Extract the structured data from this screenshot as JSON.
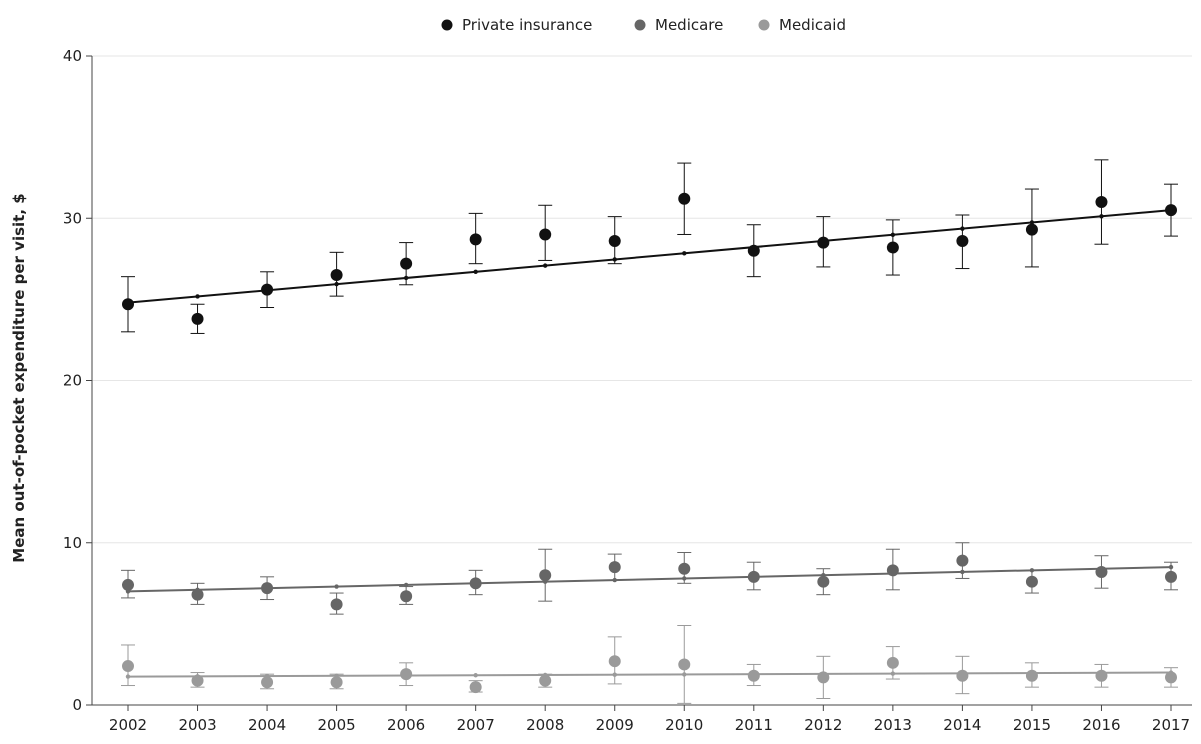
{
  "chart_data": {
    "type": "scatter",
    "title": "",
    "xlabel": "",
    "ylabel": "Mean out-of-pocket expenditure per visit, $",
    "x": [
      "2002",
      "2003",
      "2004",
      "2005",
      "2006",
      "2007",
      "2008",
      "2009",
      "2010",
      "2011",
      "2012",
      "2013",
      "2014",
      "2015",
      "2016",
      "2017"
    ],
    "ylim": [
      0,
      40
    ],
    "yticks": [
      "0",
      "10",
      "20",
      "30",
      "40"
    ],
    "grid": "horizontal",
    "legend_position": "top-center",
    "series": [
      {
        "name": "Private insurance",
        "color": "#111111",
        "values": [
          24.7,
          23.8,
          25.6,
          26.5,
          27.2,
          28.7,
          29.0,
          28.6,
          31.2,
          28.0,
          28.5,
          28.2,
          28.6,
          29.3,
          31.0,
          30.5
        ],
        "error_low": [
          23.0,
          22.9,
          24.5,
          25.2,
          25.9,
          27.2,
          27.4,
          27.2,
          29.0,
          26.4,
          27.0,
          26.5,
          26.9,
          27.0,
          28.4,
          28.9
        ],
        "error_high": [
          26.4,
          24.7,
          26.7,
          27.9,
          28.5,
          30.3,
          30.8,
          30.1,
          33.4,
          29.6,
          30.1,
          29.9,
          30.2,
          31.8,
          33.6,
          32.1
        ],
        "trend": [
          24.8,
          30.5
        ]
      },
      {
        "name": "Medicare",
        "color": "#666666",
        "values": [
          7.4,
          6.8,
          7.2,
          6.2,
          6.7,
          7.5,
          8.0,
          8.5,
          8.4,
          7.9,
          7.6,
          8.3,
          8.9,
          7.6,
          8.2,
          7.9
        ],
        "error_low": [
          6.6,
          6.2,
          6.5,
          5.6,
          6.2,
          6.8,
          6.4,
          7.7,
          7.5,
          7.1,
          6.8,
          7.1,
          7.8,
          6.9,
          7.2,
          7.1
        ],
        "error_high": [
          8.3,
          7.5,
          7.9,
          6.9,
          7.3,
          8.3,
          9.6,
          9.3,
          9.4,
          8.8,
          8.4,
          9.6,
          10.0,
          8.3,
          9.2,
          8.8
        ],
        "trend": [
          7.0,
          8.5
        ]
      },
      {
        "name": "Medicaid",
        "color": "#9a9a9a",
        "values": [
          2.4,
          1.5,
          1.4,
          1.4,
          1.9,
          1.1,
          1.5,
          2.7,
          2.5,
          1.8,
          1.7,
          2.6,
          1.8,
          1.8,
          1.8,
          1.7
        ],
        "error_low": [
          1.2,
          1.1,
          1.0,
          1.0,
          1.2,
          0.8,
          1.1,
          1.3,
          0.1,
          1.2,
          0.4,
          1.6,
          0.7,
          1.1,
          1.1,
          1.1
        ],
        "error_high": [
          3.7,
          2.0,
          1.9,
          1.9,
          2.6,
          1.5,
          1.9,
          4.2,
          4.9,
          2.5,
          3.0,
          3.6,
          3.0,
          2.6,
          2.5,
          2.3
        ],
        "trend": [
          1.75,
          2.0
        ]
      }
    ]
  }
}
